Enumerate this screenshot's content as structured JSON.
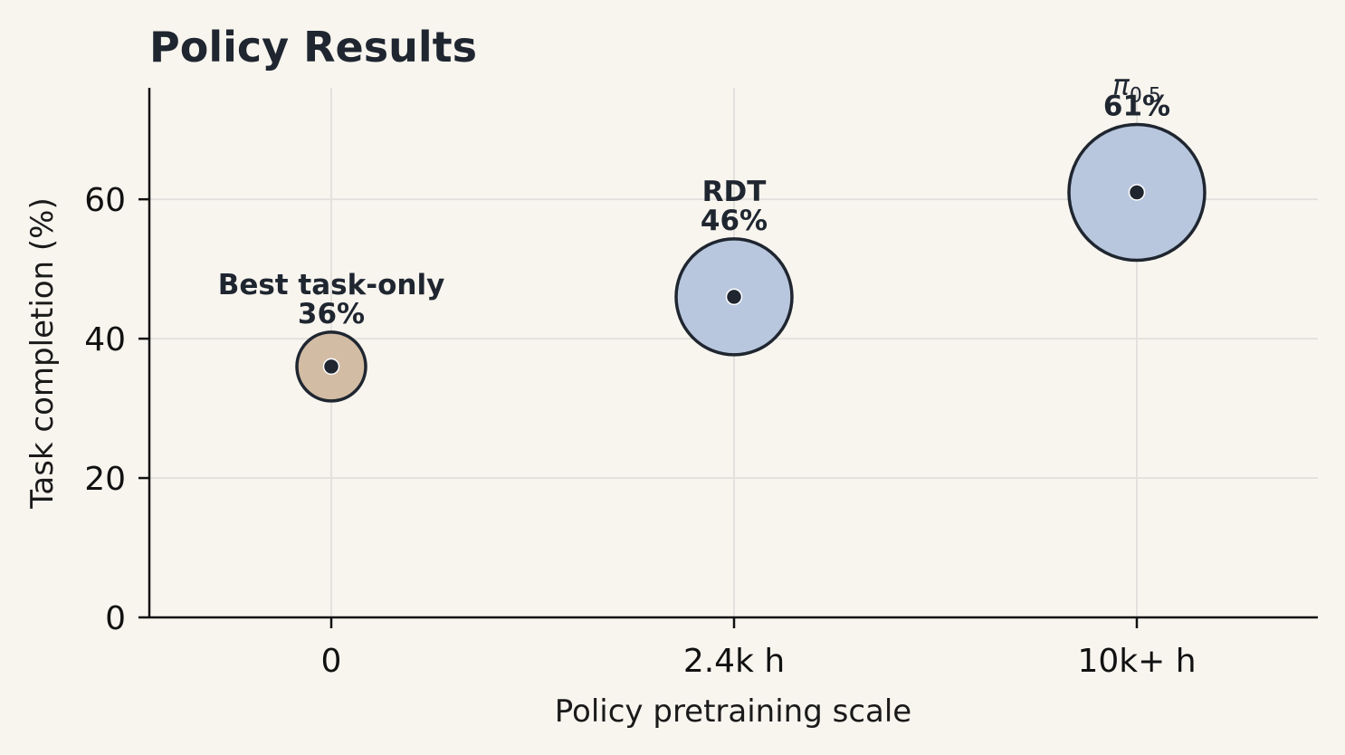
{
  "chart_data": {
    "type": "scatter",
    "title": "Policy Results",
    "xlabel": "Policy pretraining scale",
    "ylabel": "Task completion (%)",
    "categories": [
      "0",
      "2.4k h",
      "10k+ h"
    ],
    "ylim": [
      0,
      76
    ],
    "yticks": [
      0,
      20,
      40,
      60
    ],
    "grid": true,
    "points": [
      {
        "category": "0",
        "y": 36,
        "name": "Best task-only",
        "value_label": "36%",
        "color": "#d2bca4",
        "size": 1
      },
      {
        "category": "2.4k h",
        "y": 46,
        "name": "RDT",
        "value_label": "46%",
        "color": "#b8c7de",
        "size": 2
      },
      {
        "category": "10k+ h",
        "y": 61,
        "name_main": "π",
        "name_sub": "0.5",
        "value_label": "61%",
        "color": "#b8c7de",
        "size": 3
      }
    ]
  },
  "colors": {
    "background": "#f8f5ef",
    "outline": "#1f2630",
    "grid": "#e3e1dd",
    "axis": "#111111"
  }
}
